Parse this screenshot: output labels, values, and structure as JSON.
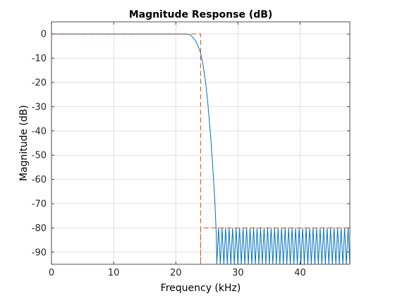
{
  "chart_data": {
    "type": "line",
    "title": "Magnitude Response (dB)",
    "xlabel": "Frequency (kHz)",
    "ylabel": "Magnitude (dB)",
    "xlim": [
      0,
      48
    ],
    "ylim": [
      -95,
      5
    ],
    "xticks": [
      0,
      10,
      20,
      30,
      40
    ],
    "yticks": [
      0,
      -10,
      -20,
      -30,
      -40,
      -50,
      -60,
      -70,
      -80,
      -90
    ],
    "grid": true,
    "legend": "none",
    "colors": {
      "response": "#0072bd",
      "mask": "#d95319"
    },
    "series": [
      {
        "role": "response",
        "passband_edge_khz": 22.0,
        "points": [
          [
            0,
            0
          ],
          [
            21.8,
            0
          ],
          [
            22.4,
            -0.5
          ],
          [
            22.8,
            -1.5
          ],
          [
            23.2,
            -3
          ],
          [
            23.6,
            -5
          ],
          [
            24.0,
            -8
          ],
          [
            24.4,
            -13
          ],
          [
            24.8,
            -20
          ],
          [
            25.2,
            -30
          ],
          [
            25.6,
            -42
          ],
          [
            26.0,
            -57
          ],
          [
            26.3,
            -70
          ],
          [
            26.5,
            -82
          ],
          [
            26.6,
            -95
          ]
        ],
        "stopband": {
          "start_khz": 26.6,
          "end_khz": 48,
          "ripple_peak_db": -80,
          "ripple_trough_db": -95,
          "ripple_count": 38
        }
      },
      {
        "role": "mask",
        "points": [
          [
            0,
            0
          ],
          [
            24,
            0
          ],
          [
            24,
            -95
          ],
          [
            24,
            -80
          ],
          [
            48,
            -80
          ]
        ]
      }
    ]
  }
}
